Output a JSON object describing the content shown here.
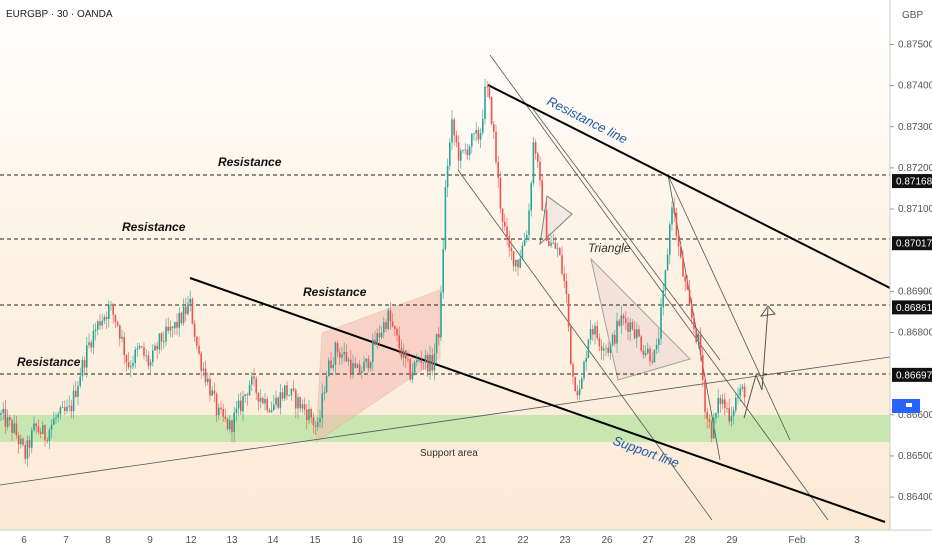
{
  "header": {
    "title": "EURGBP · 30 · OANDA",
    "currency": "GBP"
  },
  "colors": {
    "up": "#26a69a",
    "down": "#ef5350",
    "support": "#b5e3a1",
    "channel": "#f7b9b0",
    "triangle": "#f1dcd6",
    "label_bg": "#111111",
    "current_bg": "#2962ff"
  },
  "chart_data": {
    "type": "candlestick",
    "symbol": "EURGBP",
    "timeframe": "30",
    "broker": "OANDA",
    "y_axis": {
      "ticks": [
        "0.87500",
        "0.87400",
        "0.87300",
        "0.87200",
        "0.87100",
        "0.86900",
        "0.86800",
        "0.86600",
        "0.86500",
        "0.86400"
      ],
      "range": [
        0.8632,
        0.8754
      ]
    },
    "x_axis": {
      "ticks": [
        "6",
        "7",
        "8",
        "9",
        "12",
        "13",
        "14",
        "15",
        "16",
        "19",
        "20",
        "21",
        "22",
        "23",
        "26",
        "27",
        "28",
        "29",
        "Feb",
        "3"
      ]
    },
    "price_labels": [
      "0.87168",
      "0.87017",
      "0.86861",
      "0.86697"
    ],
    "current_price": {
      "value": 0.8662,
      "label": ""
    },
    "horizontal_levels": [
      0.87168,
      0.87017,
      0.86861,
      0.86697
    ],
    "support_area": [
      0.8654,
      0.866
    ],
    "annotations": {
      "resistance_1": "Resistance",
      "resistance_2": "Resistance",
      "resistance_3": "Resistance",
      "resistance_4": "Resistance",
      "resistance_line": "Resistance line",
      "support_line": "Support line",
      "support_area": "Support area",
      "triangle": "Triangle"
    },
    "price_path": [
      [
        0,
        0.866
      ],
      [
        15,
        0.8656
      ],
      [
        25,
        0.865
      ],
      [
        35,
        0.8657
      ],
      [
        45,
        0.8655
      ],
      [
        55,
        0.8659
      ],
      [
        70,
        0.8661
      ],
      [
        80,
        0.867
      ],
      [
        90,
        0.8678
      ],
      [
        100,
        0.8683
      ],
      [
        110,
        0.8686
      ],
      [
        118,
        0.8682
      ],
      [
        128,
        0.8672
      ],
      [
        140,
        0.8676
      ],
      [
        150,
        0.8672
      ],
      [
        160,
        0.8678
      ],
      [
        170,
        0.868
      ],
      [
        180,
        0.8683
      ],
      [
        190,
        0.8687
      ],
      [
        198,
        0.8675
      ],
      [
        208,
        0.8668
      ],
      [
        218,
        0.866
      ],
      [
        230,
        0.8657
      ],
      [
        240,
        0.8662
      ],
      [
        250,
        0.8668
      ],
      [
        262,
        0.8664
      ],
      [
        272,
        0.8662
      ],
      [
        285,
        0.8666
      ],
      [
        298,
        0.8663
      ],
      [
        310,
        0.866
      ],
      [
        318,
        0.8656
      ],
      [
        326,
        0.867
      ],
      [
        336,
        0.8676
      ],
      [
        346,
        0.8674
      ],
      [
        356,
        0.867
      ],
      [
        366,
        0.8672
      ],
      [
        376,
        0.8678
      ],
      [
        388,
        0.8684
      ],
      [
        400,
        0.8676
      ],
      [
        410,
        0.867
      ],
      [
        420,
        0.8674
      ],
      [
        432,
        0.8672
      ],
      [
        440,
        0.8682
      ],
      [
        446,
        0.8718
      ],
      [
        452,
        0.873
      ],
      [
        460,
        0.8722
      ],
      [
        470,
        0.8726
      ],
      [
        480,
        0.8728
      ],
      [
        486,
        0.874
      ],
      [
        492,
        0.8732
      ],
      [
        500,
        0.8712
      ],
      [
        508,
        0.87
      ],
      [
        518,
        0.8697
      ],
      [
        528,
        0.8706
      ],
      [
        534,
        0.8728
      ],
      [
        540,
        0.8715
      ],
      [
        548,
        0.8702
      ],
      [
        558,
        0.87
      ],
      [
        566,
        0.869
      ],
      [
        572,
        0.867
      ],
      [
        580,
        0.8665
      ],
      [
        590,
        0.8682
      ],
      [
        600,
        0.8678
      ],
      [
        610,
        0.8676
      ],
      [
        620,
        0.8683
      ],
      [
        632,
        0.8682
      ],
      [
        644,
        0.8676
      ],
      [
        656,
        0.8674
      ],
      [
        664,
        0.869
      ],
      [
        672,
        0.8712
      ],
      [
        680,
        0.8698
      ],
      [
        690,
        0.8685
      ],
      [
        700,
        0.8676
      ],
      [
        706,
        0.866
      ],
      [
        712,
        0.8656
      ],
      [
        720,
        0.8664
      ],
      [
        730,
        0.866
      ],
      [
        736,
        0.8664
      ],
      [
        744,
        0.8666
      ]
    ]
  }
}
